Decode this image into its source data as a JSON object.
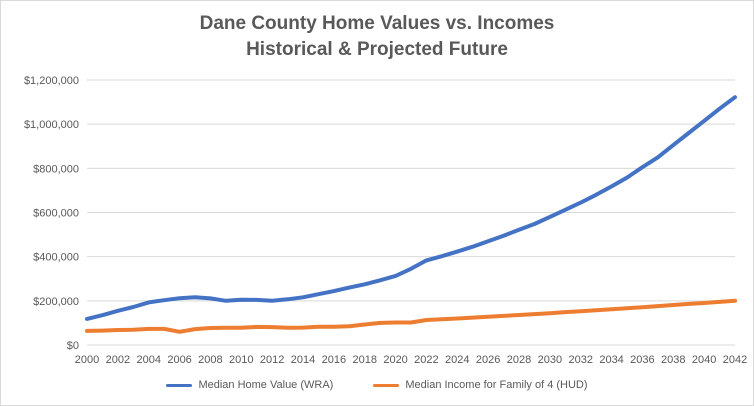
{
  "chart_data": {
    "type": "line",
    "title": "Dane County Home Values vs. Incomes",
    "subtitle": "Historical & Projected Future",
    "xlabel": "",
    "ylabel": "",
    "x": [
      2000,
      2001,
      2002,
      2003,
      2004,
      2005,
      2006,
      2007,
      2008,
      2009,
      2010,
      2011,
      2012,
      2013,
      2014,
      2015,
      2016,
      2017,
      2018,
      2019,
      2020,
      2021,
      2022,
      2023,
      2024,
      2025,
      2026,
      2027,
      2028,
      2029,
      2030,
      2031,
      2032,
      2033,
      2034,
      2035,
      2036,
      2037,
      2038,
      2039,
      2040,
      2041,
      2042
    ],
    "xticks": [
      "2000",
      "2002",
      "2004",
      "2006",
      "2008",
      "2010",
      "2012",
      "2014",
      "2016",
      "2018",
      "2020",
      "2022",
      "2024",
      "2026",
      "2028",
      "2030",
      "2032",
      "2034",
      "2036",
      "2038",
      "2040",
      "2042"
    ],
    "xlim": [
      2000,
      2042
    ],
    "ylim": [
      0,
      1200000
    ],
    "yticks": [
      0,
      200000,
      400000,
      600000,
      800000,
      1000000,
      1200000
    ],
    "ytick_labels": [
      "$0",
      "$200,000",
      "$400,000",
      "$600,000",
      "$800,000",
      "$1,000,000",
      "$1,200,000"
    ],
    "grid": true,
    "legend_position": "bottom",
    "series": [
      {
        "name": "Median Home Value (WRA)",
        "color": "#4472C4",
        "values": [
          118000,
          135000,
          155000,
          172000,
          193000,
          203000,
          212000,
          216000,
          211000,
          200000,
          205000,
          204000,
          200000,
          207000,
          216000,
          230000,
          244000,
          260000,
          275000,
          293000,
          313000,
          345000,
          383000,
          402000,
          423000,
          445000,
          470000,
          495000,
          522000,
          548000,
          580000,
          612000,
          645000,
          680000,
          718000,
          758000,
          805000,
          850000,
          905000,
          960000,
          1015000,
          1070000,
          1122000
        ]
      },
      {
        "name": "Median Income for Family of 4 (HUD)",
        "color": "#ED7D31",
        "values": [
          64000,
          65000,
          68000,
          69000,
          73000,
          73000,
          60000,
          72000,
          77000,
          78000,
          78000,
          82000,
          81000,
          78000,
          79000,
          83000,
          83000,
          85000,
          93000,
          100000,
          102000,
          102000,
          113000,
          117000,
          120000,
          124000,
          128000,
          132000,
          136000,
          140000,
          144000,
          149000,
          153000,
          157000,
          162000,
          166000,
          171000,
          176000,
          181000,
          186000,
          190000,
          195000,
          200000
        ]
      }
    ]
  }
}
